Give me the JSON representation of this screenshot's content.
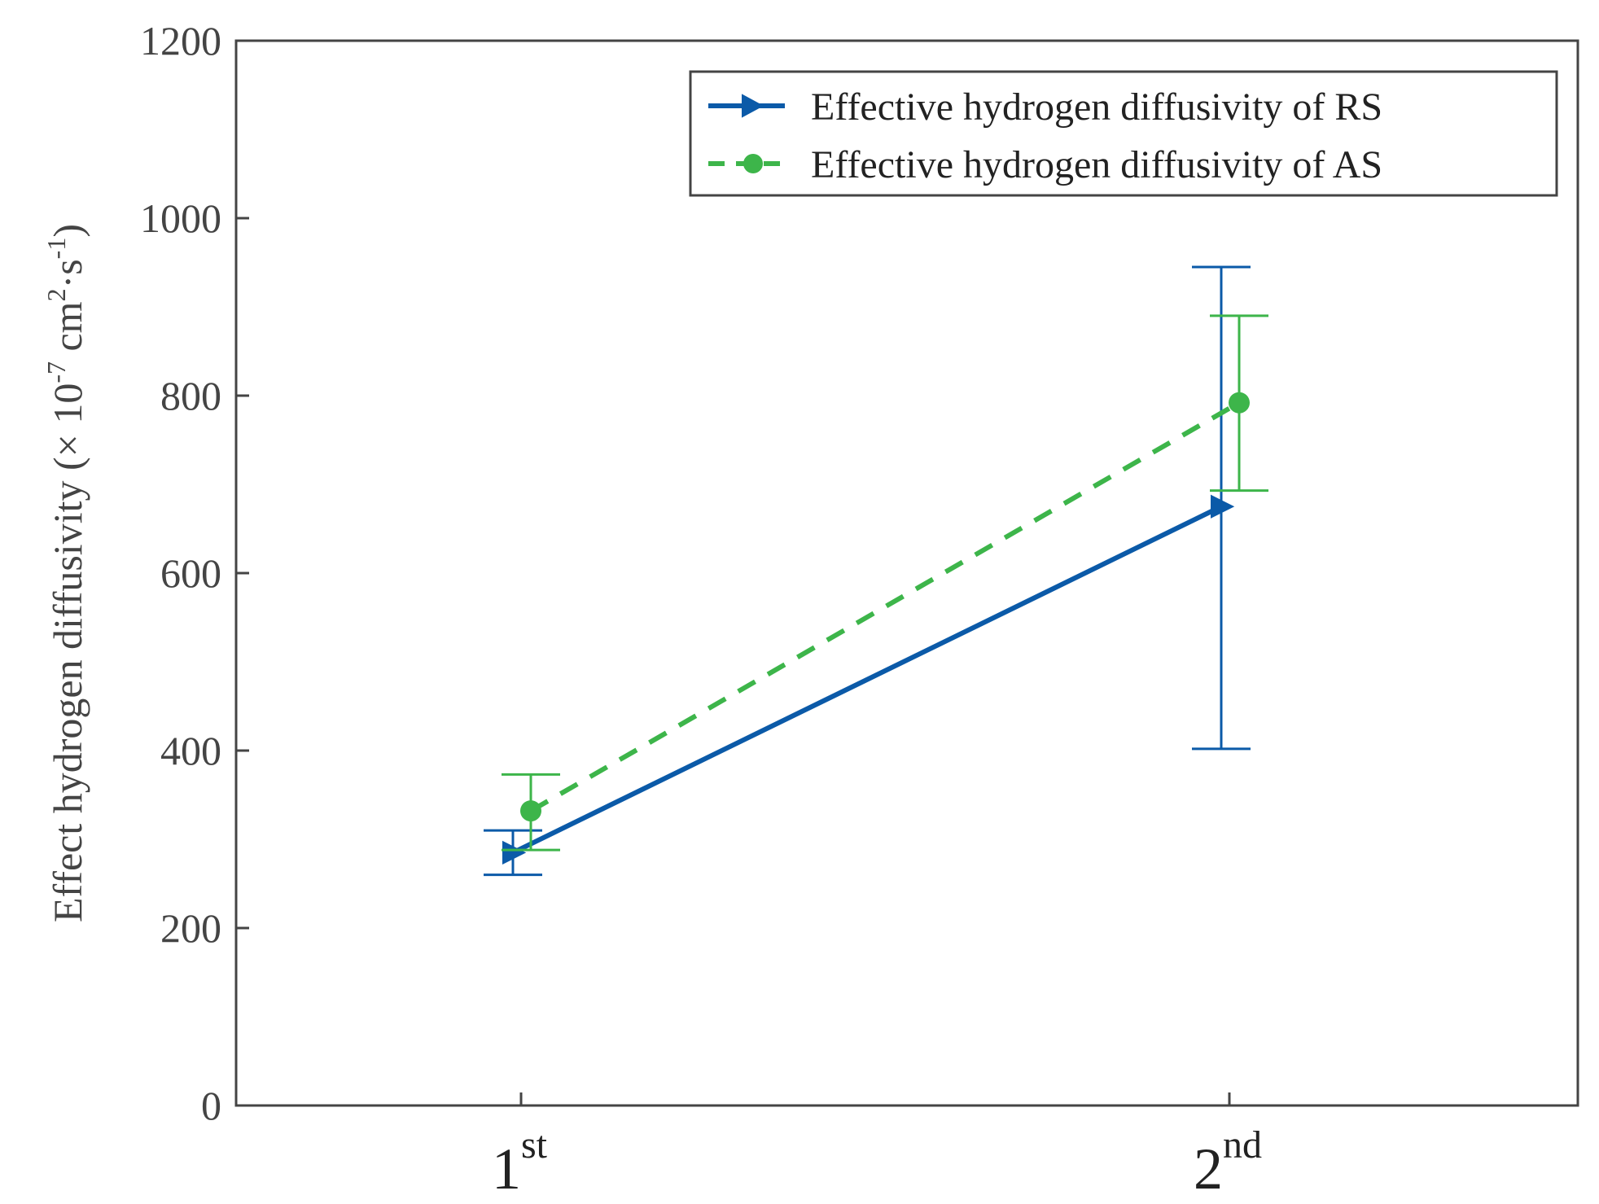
{
  "chart_data": {
    "type": "line",
    "title": "",
    "xlabel": "",
    "ylabel": {
      "prefix": "Effect hydrogen diffusivity (× 10",
      "exp1": "-7",
      "mid1": " cm",
      "exp2": "2",
      "mid2": "·s",
      "exp3": "-1",
      "suffix": ")"
    },
    "ylim": [
      0,
      1200
    ],
    "yticks": [
      0,
      200,
      400,
      600,
      800,
      1000,
      1200
    ],
    "categories": [
      {
        "base": "1",
        "sup": "st"
      },
      {
        "base": "2",
        "sup": "nd"
      }
    ],
    "grid": false,
    "legend_position": "top-right",
    "series": [
      {
        "name": "Effective hydrogen diffusivity of RS",
        "color": "#0b5aa8",
        "line_style": "solid",
        "marker": "triangle-right",
        "values": [
          285,
          675
        ],
        "error_low": [
          260,
          402
        ],
        "error_high": [
          310,
          945
        ]
      },
      {
        "name": "Effective hydrogen diffusivity of AS",
        "color": "#3db54a",
        "line_style": "dashed",
        "marker": "circle",
        "values": [
          332,
          792
        ],
        "error_low": [
          288,
          693
        ],
        "error_high": [
          373,
          890
        ]
      }
    ]
  }
}
